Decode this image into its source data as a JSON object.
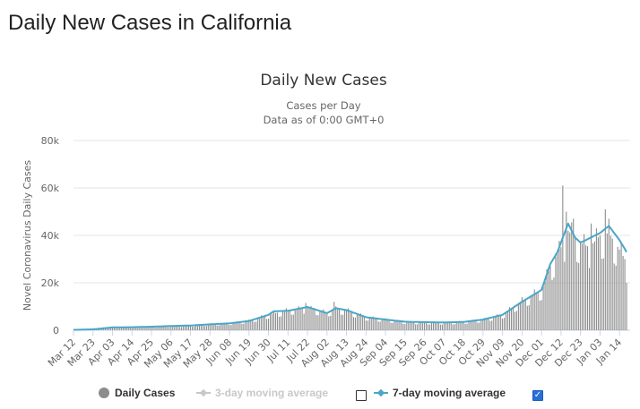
{
  "page": {
    "title": "Daily New Cases in California"
  },
  "colors": {
    "bars": "#8c8c8c",
    "seven_day": "#4aa6c9",
    "three_day_disabled": "#c8c8c8",
    "grid": "#e6e6e6",
    "axis_text": "#666666",
    "checkbox_checked": "#2a6fd8"
  },
  "legend": {
    "items": [
      {
        "label": "Daily Cases",
        "marker": "circle",
        "enabled": true
      },
      {
        "label": "3-day moving average",
        "marker": "line-diamond",
        "enabled": false,
        "checked": false
      },
      {
        "label": "7-day moving average",
        "marker": "line-diamond",
        "enabled": true,
        "checked": true
      }
    ]
  },
  "chart_data": {
    "type": "bar",
    "title": "Daily New Cases",
    "subtitle_lines": [
      "Cases per Day",
      "Data as of 0:00 GMT+0"
    ],
    "xlabel": "",
    "ylabel": "Novel Coronavirus Daily Cases",
    "ylim": [
      0,
      80000
    ],
    "y_ticks": [
      0,
      20000,
      40000,
      60000,
      80000
    ],
    "y_tick_labels": [
      "0",
      "20k",
      "40k",
      "60k",
      "80k"
    ],
    "x_ticks": [
      "Mar 12",
      "Mar 23",
      "Apr 03",
      "Apr 14",
      "Apr 25",
      "May 06",
      "May 17",
      "May 28",
      "Jun 08",
      "Jun 19",
      "Jun 30",
      "Jul 11",
      "Jul 22",
      "Aug 02",
      "Aug 13",
      "Aug 24",
      "Sep 04",
      "Sep 15",
      "Sep 26",
      "Oct 07",
      "Oct 18",
      "Oct 29",
      "Nov 09",
      "Nov 20",
      "Dec 01",
      "Dec 12",
      "Dec 23",
      "Jan 03",
      "Jan 14"
    ],
    "x_tick_interval_days": 11,
    "grid": true,
    "legend_position": "bottom",
    "series": [
      {
        "name": "Daily Cases",
        "kind": "bar",
        "start": "Mar 12",
        "keyframes": [
          [
            "Mar 12",
            150
          ],
          [
            "Mar 23",
            400
          ],
          [
            "Apr 03",
            1200
          ],
          [
            "Apr 14",
            1200
          ],
          [
            "Apr 25",
            1500
          ],
          [
            "May 06",
            1800
          ],
          [
            "May 17",
            2000
          ],
          [
            "May 28",
            2600
          ],
          [
            "Jun 08",
            2900
          ],
          [
            "Jun 19",
            4000
          ],
          [
            "Jun 30",
            6500
          ],
          [
            "Jul 11",
            8500
          ],
          [
            "Jul 22",
            9500
          ],
          [
            "Aug 02",
            7500
          ],
          [
            "Aug 07",
            9000
          ],
          [
            "Aug 13",
            8500
          ],
          [
            "Aug 24",
            5500
          ],
          [
            "Sep 04",
            4500
          ],
          [
            "Sep 15",
            3500
          ],
          [
            "Sep 26",
            3300
          ],
          [
            "Oct 07",
            3200
          ],
          [
            "Oct 18",
            3500
          ],
          [
            "Oct 29",
            4500
          ],
          [
            "Nov 09",
            6500
          ],
          [
            "Nov 20",
            12500
          ],
          [
            "Dec 01",
            17000
          ],
          [
            "Dec 06",
            27000
          ],
          [
            "Dec 12",
            35000
          ],
          [
            "Dec 16",
            42000
          ],
          [
            "Dec 23",
            37000
          ],
          [
            "Dec 28",
            35000
          ],
          [
            "Jan 03",
            40000
          ],
          [
            "Jan 08",
            41000
          ],
          [
            "Jan 14",
            34000
          ],
          [
            "Jan 17",
            30000
          ]
        ],
        "peaks": [
          [
            "Jul 21",
            11500
          ],
          [
            "Aug 06",
            12000
          ],
          [
            "Dec 13",
            61000
          ],
          [
            "Dec 15",
            50000
          ],
          [
            "Dec 19",
            47000
          ],
          [
            "Dec 29",
            45000
          ],
          [
            "Jan 06",
            51000
          ],
          [
            "Jan 08",
            47000
          ],
          [
            "Jan 18",
            20000
          ]
        ]
      },
      {
        "name": "7-day moving average",
        "kind": "line",
        "start": "Mar 12",
        "keyframes": [
          [
            "Mar 12",
            150
          ],
          [
            "Mar 23",
            400
          ],
          [
            "Apr 03",
            1200
          ],
          [
            "Apr 14",
            1300
          ],
          [
            "Apr 25",
            1500
          ],
          [
            "May 06",
            1800
          ],
          [
            "May 17",
            2000
          ],
          [
            "May 28",
            2500
          ],
          [
            "Jun 08",
            2900
          ],
          [
            "Jun 19",
            3900
          ],
          [
            "Jun 30",
            6500
          ],
          [
            "Jul 03",
            8000
          ],
          [
            "Jul 11",
            8200
          ],
          [
            "Jul 22",
            9800
          ],
          [
            "Aug 02",
            7200
          ],
          [
            "Aug 07",
            9300
          ],
          [
            "Aug 13",
            8500
          ],
          [
            "Aug 24",
            5500
          ],
          [
            "Sep 04",
            4500
          ],
          [
            "Sep 15",
            3600
          ],
          [
            "Sep 26",
            3400
          ],
          [
            "Oct 07",
            3300
          ],
          [
            "Oct 18",
            3500
          ],
          [
            "Oct 29",
            4500
          ],
          [
            "Nov 09",
            6500
          ],
          [
            "Nov 20",
            12000
          ],
          [
            "Dec 01",
            17000
          ],
          [
            "Dec 06",
            28000
          ],
          [
            "Dec 10",
            33000
          ],
          [
            "Dec 16",
            45000
          ],
          [
            "Dec 20",
            39000
          ],
          [
            "Dec 23",
            37000
          ],
          [
            "Dec 26",
            38000
          ],
          [
            "Jan 03",
            41000
          ],
          [
            "Jan 08",
            44000
          ],
          [
            "Jan 14",
            38000
          ],
          [
            "Jan 18",
            33000
          ]
        ]
      }
    ]
  }
}
